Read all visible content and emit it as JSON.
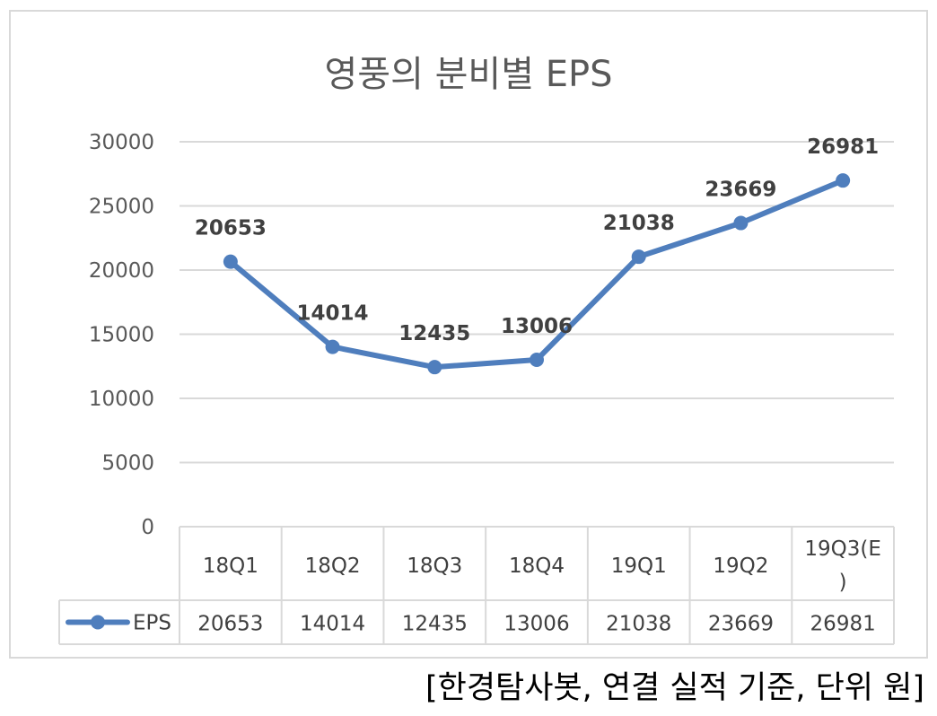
{
  "chart_data": {
    "type": "line",
    "title": "영풍의 분비별 EPS",
    "categories": [
      "18Q1",
      "18Q2",
      "18Q3",
      "18Q4",
      "19Q1",
      "19Q2",
      "19Q3(E)"
    ],
    "category_lines": [
      [
        "18Q1"
      ],
      [
        "18Q2"
      ],
      [
        "18Q3"
      ],
      [
        "18Q4"
      ],
      [
        "19Q1"
      ],
      [
        "19Q2"
      ],
      [
        "19Q3(E",
        ")"
      ]
    ],
    "series": [
      {
        "name": "EPS",
        "values": [
          20653,
          14014,
          12435,
          13006,
          21038,
          23669,
          26981
        ],
        "color": "#4f7ebd"
      }
    ],
    "ylim": [
      0,
      30000
    ],
    "yticks": [
      0,
      5000,
      10000,
      15000,
      20000,
      25000,
      30000
    ],
    "grid": true,
    "data_table": true,
    "data_labels": true
  },
  "caption": "[한경탐사봇, 연결 실적 기준, 단위 원]"
}
